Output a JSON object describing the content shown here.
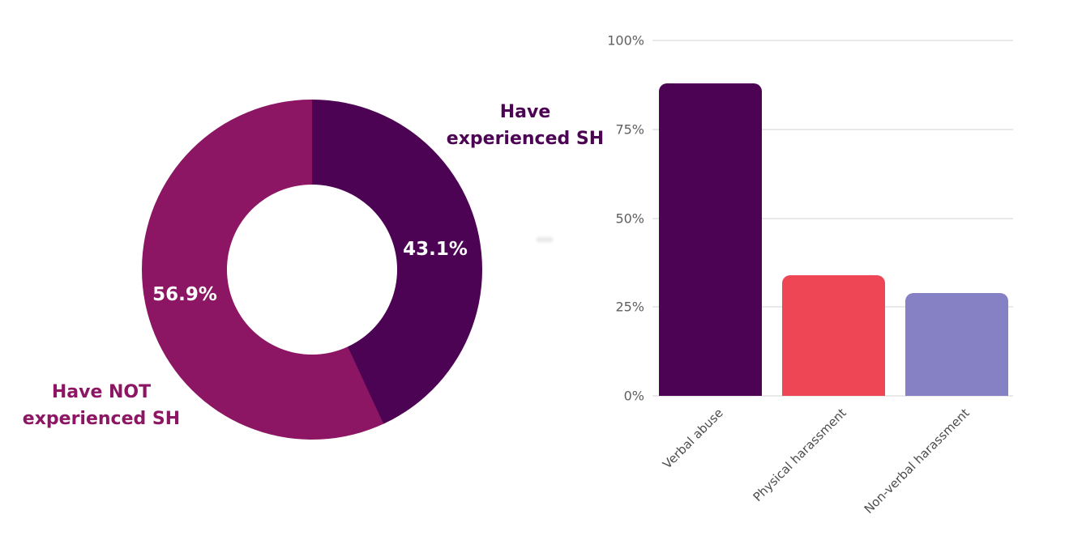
{
  "colors": {
    "dark_purple": "#4D0354",
    "magenta": "#8C1663",
    "red": "#EF4656",
    "lavender": "#8680C4",
    "axis_text": "#5F5F5F",
    "gridline": "#E9E9E9"
  },
  "donut_labels": {
    "experienced": [
      "Have",
      "experienced SH"
    ],
    "not_experienced": [
      "Have NOT",
      "experienced SH"
    ]
  },
  "chart_data": [
    {
      "type": "pie",
      "subtype": "donut",
      "labels": [
        "Have experienced SH",
        "Have NOT experienced SH"
      ],
      "values": [
        43.1,
        56.9
      ],
      "value_labels": [
        "43.1%",
        "56.9%"
      ],
      "colors": [
        "#4D0354",
        "#8C1663"
      ],
      "start_angle_deg": 0,
      "direction": "clockwise",
      "hole_ratio": 0.5,
      "legend_position": "none"
    },
    {
      "type": "bar",
      "categories": [
        "Verbal abuse",
        "Physical harassment",
        "Non-verbal harassment"
      ],
      "values": [
        88,
        34,
        29
      ],
      "colors": [
        "#4D0354",
        "#EF4656",
        "#8680C4"
      ],
      "title": "",
      "xlabel": "",
      "ylabel": "",
      "ylim": [
        0,
        100
      ],
      "yticks": [
        "0%",
        "25%",
        "50%",
        "75%",
        "100%"
      ],
      "grid": true,
      "xtick_rotation_deg": 45,
      "legend_position": "none"
    }
  ]
}
